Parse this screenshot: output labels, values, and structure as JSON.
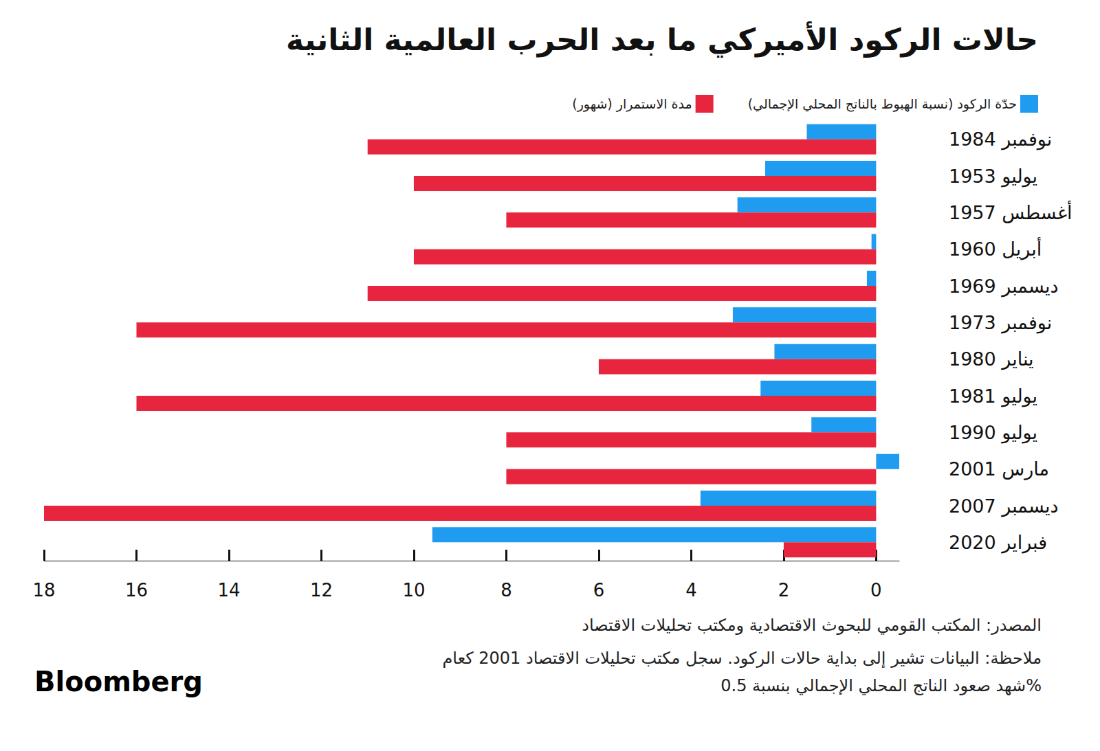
{
  "chart_data": {
    "type": "bar",
    "orientation": "horizontal",
    "title": "حالات الركود الأميركي ما بعد الحرب العالمية الثانية",
    "categories": [
      "نوفمبر 1984",
      "يوليو 1953",
      "أغسطس 1957",
      "أبريل 1960",
      "ديسمبر 1969",
      "نوفمبر 1973",
      "يناير 1980",
      "يوليو 1981",
      "يوليو 1990",
      "مارس 2001",
      "ديسمبر 2007",
      "فبراير 2020"
    ],
    "series": [
      {
        "name": "حدّة الركود (نسبة الهبوط بالناتج المحلي الإجمالي)",
        "color": "#1f9bf0",
        "values": [
          1.5,
          2.4,
          3.0,
          0.1,
          0.2,
          3.1,
          2.2,
          2.5,
          1.4,
          -0.5,
          3.8,
          9.6
        ]
      },
      {
        "name": "مدة الاستمرار (شهور)",
        "color": "#e8253f",
        "values": [
          11,
          10,
          8,
          10,
          11,
          16,
          6,
          16,
          8,
          8,
          18,
          2
        ]
      }
    ],
    "xlim": [
      -0.5,
      18
    ],
    "xticks": [
      0,
      2,
      4,
      6,
      8,
      10,
      12,
      14,
      16,
      18
    ],
    "grid": false,
    "legend": "top-right",
    "source": "المصدر: المكتب القومي للبحوث الاقتصادية ومكتب تحليلات الاقتصاد",
    "note": "ملاحظة: البيانات تشير إلى بداية حالات الركود. سجل مكتب تحليلات الاقتصاد 2001 كعام\nشهد صعود الناتج المحلي الإجمالي بنسبة 0.5%",
    "credit": "Bloomberg"
  }
}
